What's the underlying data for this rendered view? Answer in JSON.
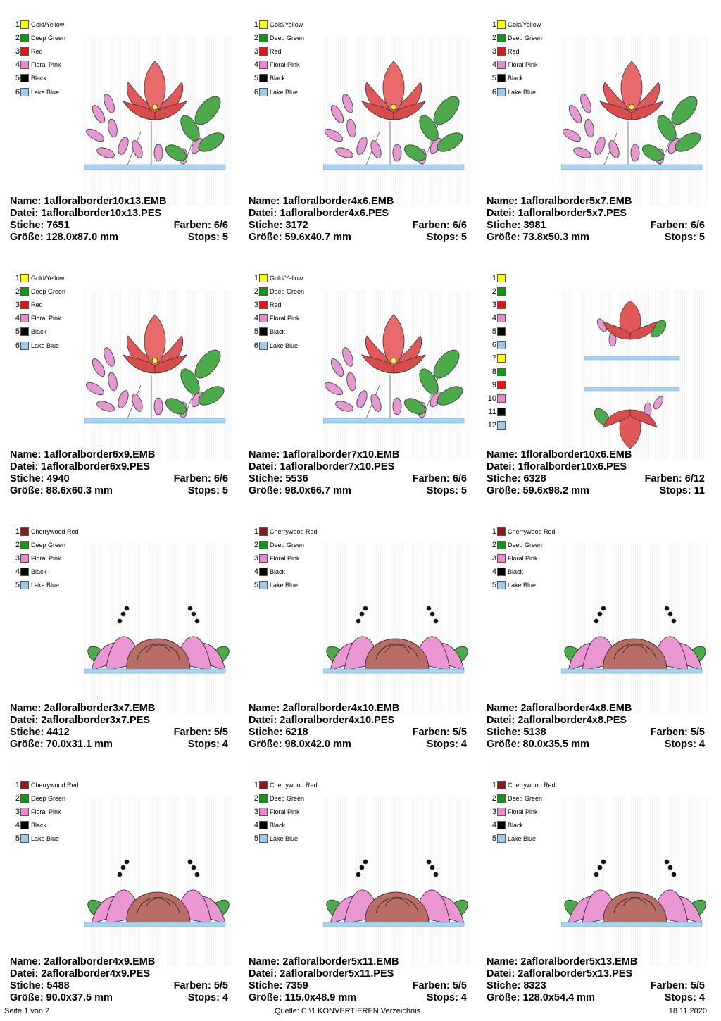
{
  "designs": [
    {
      "name_label": "Name: 1afloralborder10x13.EMB",
      "file_label": "Datei: 1afloralborder10x13.PES",
      "stitches_label": "Stiche: 7651",
      "colors_label": "Farben: 6/6",
      "size_label": "Größe: 128.0x87.0 mm",
      "stops_label": "Stops: 5",
      "motif": "lily",
      "legend": [
        {
          "num": "1",
          "color": "#ffff00",
          "label": "Gold/Yellow"
        },
        {
          "num": "2",
          "color": "#119911",
          "label": "Deep Green"
        },
        {
          "num": "3",
          "color": "#ee1111",
          "label": "Red"
        },
        {
          "num": "4",
          "color": "#ee88cc",
          "label": "Floral Pink"
        },
        {
          "num": "5",
          "color": "#000000",
          "label": "Black"
        },
        {
          "num": "6",
          "color": "#99ccee",
          "label": "Lake Blue"
        }
      ]
    },
    {
      "name_label": "Name: 1afloralborder4x6.EMB",
      "file_label": "Datei: 1afloralborder4x6.PES",
      "stitches_label": "Stiche: 3172",
      "colors_label": "Farben: 6/6",
      "size_label": "Größe: 59.6x40.7 mm",
      "stops_label": "Stops: 5",
      "motif": "lily",
      "legend": [
        {
          "num": "1",
          "color": "#ffff00",
          "label": "Gold/Yellow"
        },
        {
          "num": "2",
          "color": "#119911",
          "label": "Deep Green"
        },
        {
          "num": "3",
          "color": "#ee1111",
          "label": "Red"
        },
        {
          "num": "4",
          "color": "#ee88cc",
          "label": "Floral Pink"
        },
        {
          "num": "5",
          "color": "#000000",
          "label": "Black"
        },
        {
          "num": "6",
          "color": "#99ccee",
          "label": "Lake Blue"
        }
      ]
    },
    {
      "name_label": "Name: 1afloralborder5x7.EMB",
      "file_label": "Datei: 1afloralborder5x7.PES",
      "stitches_label": "Stiche: 3981",
      "colors_label": "Farben: 6/6",
      "size_label": "Größe: 73.8x50.3 mm",
      "stops_label": "Stops: 5",
      "motif": "lily",
      "legend": [
        {
          "num": "1",
          "color": "#ffff00",
          "label": "Gold/Yellow"
        },
        {
          "num": "2",
          "color": "#119911",
          "label": "Deep Green"
        },
        {
          "num": "3",
          "color": "#ee1111",
          "label": "Red"
        },
        {
          "num": "4",
          "color": "#ee88cc",
          "label": "Floral Pink"
        },
        {
          "num": "5",
          "color": "#000000",
          "label": "Black"
        },
        {
          "num": "6",
          "color": "#99ccee",
          "label": "Lake Blue"
        }
      ]
    },
    {
      "name_label": "Name: 1afloralborder6x9.EMB",
      "file_label": "Datei: 1afloralborder6x9.PES",
      "stitches_label": "Stiche: 4940",
      "colors_label": "Farben: 6/6",
      "size_label": "Größe: 88.6x60.3 mm",
      "stops_label": "Stops: 5",
      "motif": "lily",
      "legend": [
        {
          "num": "1",
          "color": "#ffff00",
          "label": "Gold/Yellow"
        },
        {
          "num": "2",
          "color": "#119911",
          "label": "Deep Green"
        },
        {
          "num": "3",
          "color": "#ee1111",
          "label": "Red"
        },
        {
          "num": "4",
          "color": "#ee88cc",
          "label": "Floral Pink"
        },
        {
          "num": "5",
          "color": "#000000",
          "label": "Black"
        },
        {
          "num": "6",
          "color": "#99ccee",
          "label": "Lake Blue"
        }
      ]
    },
    {
      "name_label": "Name: 1afloralborder7x10.EMB",
      "file_label": "Datei: 1afloralborder7x10.PES",
      "stitches_label": "Stiche: 5536",
      "colors_label": "Farben: 6/6",
      "size_label": "Größe: 98.0x66.7 mm",
      "stops_label": "Stops: 5",
      "motif": "lily",
      "legend": [
        {
          "num": "1",
          "color": "#ffff00",
          "label": "Gold/Yellow"
        },
        {
          "num": "2",
          "color": "#119911",
          "label": "Deep Green"
        },
        {
          "num": "3",
          "color": "#ee1111",
          "label": "Red"
        },
        {
          "num": "4",
          "color": "#ee88cc",
          "label": "Floral Pink"
        },
        {
          "num": "5",
          "color": "#000000",
          "label": "Black"
        },
        {
          "num": "6",
          "color": "#99ccee",
          "label": "Lake Blue"
        }
      ]
    },
    {
      "name_label": "Name: 1floralborder10x6.EMB",
      "file_label": "Datei: 1floralborder10x6.PES",
      "stitches_label": "Stiche: 6328",
      "colors_label": "Farben: 6/12",
      "size_label": "Größe: 59.6x98.2 mm",
      "stops_label": "Stops: 11",
      "motif": "split",
      "legend": [
        {
          "num": "1",
          "color": "#ffff00",
          "label": ""
        },
        {
          "num": "2",
          "color": "#119911",
          "label": ""
        },
        {
          "num": "3",
          "color": "#ee1111",
          "label": ""
        },
        {
          "num": "4",
          "color": "#ee88cc",
          "label": ""
        },
        {
          "num": "5",
          "color": "#000000",
          "label": ""
        },
        {
          "num": "6",
          "color": "#99ccee",
          "label": ""
        },
        {
          "num": "7",
          "color": "#ffff00",
          "label": ""
        },
        {
          "num": "8",
          "color": "#119911",
          "label": ""
        },
        {
          "num": "9",
          "color": "#ee1111",
          "label": ""
        },
        {
          "num": "10",
          "color": "#ee88cc",
          "label": ""
        },
        {
          "num": "11",
          "color": "#000000",
          "label": ""
        },
        {
          "num": "12",
          "color": "#99ccee",
          "label": ""
        }
      ]
    },
    {
      "name_label": "Name: 2afloralborder3x7.EMB",
      "file_label": "Datei: 2afloralborder3x7.PES",
      "stitches_label": "Stiche: 4412",
      "colors_label": "Farben: 5/5",
      "size_label": "Größe: 70.0x31.1 mm",
      "stops_label": "Stops: 4",
      "motif": "rose",
      "legend": [
        {
          "num": "1",
          "color": "#8b1a1a",
          "label": "Cherrywood Red"
        },
        {
          "num": "2",
          "color": "#119911",
          "label": "Deep Green"
        },
        {
          "num": "3",
          "color": "#ee88cc",
          "label": "Floral Pink"
        },
        {
          "num": "4",
          "color": "#000000",
          "label": "Black"
        },
        {
          "num": "5",
          "color": "#99ccee",
          "label": "Lake Blue"
        }
      ]
    },
    {
      "name_label": "Name: 2afloralborder4x10.EMB",
      "file_label": "Datei: 2afloralborder4x10.PES",
      "stitches_label": "Stiche: 6218",
      "colors_label": "Farben: 5/5",
      "size_label": "Größe: 98.0x42.0 mm",
      "stops_label": "Stops: 4",
      "motif": "rose",
      "legend": [
        {
          "num": "1",
          "color": "#8b1a1a",
          "label": "Cherrywood Red"
        },
        {
          "num": "2",
          "color": "#119911",
          "label": "Deep Green"
        },
        {
          "num": "3",
          "color": "#ee88cc",
          "label": "Floral Pink"
        },
        {
          "num": "4",
          "color": "#000000",
          "label": "Black"
        },
        {
          "num": "5",
          "color": "#99ccee",
          "label": "Lake Blue"
        }
      ]
    },
    {
      "name_label": "Name: 2afloralborder4x8.EMB",
      "file_label": "Datei: 2afloralborder4x8.PES",
      "stitches_label": "Stiche: 5138",
      "colors_label": "Farben: 5/5",
      "size_label": "Größe: 80.0x35.5 mm",
      "stops_label": "Stops: 4",
      "motif": "rose",
      "legend": [
        {
          "num": "1",
          "color": "#8b1a1a",
          "label": "Cherrywood Red"
        },
        {
          "num": "2",
          "color": "#119911",
          "label": "Deep Green"
        },
        {
          "num": "3",
          "color": "#ee88cc",
          "label": "Floral Pink"
        },
        {
          "num": "4",
          "color": "#000000",
          "label": "Black"
        },
        {
          "num": "5",
          "color": "#99ccee",
          "label": "Lake Blue"
        }
      ]
    },
    {
      "name_label": "Name: 2afloralborder4x9.EMB",
      "file_label": "Datei: 2afloralborder4x9.PES",
      "stitches_label": "Stiche: 5488",
      "colors_label": "Farben: 5/5",
      "size_label": "Größe: 90.0x37.5 mm",
      "stops_label": "Stops: 4",
      "motif": "rose",
      "legend": [
        {
          "num": "1",
          "color": "#8b1a1a",
          "label": "Cherrywood Red"
        },
        {
          "num": "2",
          "color": "#119911",
          "label": "Deep Green"
        },
        {
          "num": "3",
          "color": "#ee88cc",
          "label": "Floral Pink"
        },
        {
          "num": "4",
          "color": "#000000",
          "label": "Black"
        },
        {
          "num": "5",
          "color": "#99ccee",
          "label": "Lake Blue"
        }
      ]
    },
    {
      "name_label": "Name: 2afloralborder5x11.EMB",
      "file_label": "Datei: 2afloralborder5x11.PES",
      "stitches_label": "Stiche: 7359",
      "colors_label": "Farben: 5/5",
      "size_label": "Größe: 115.0x48.9 mm",
      "stops_label": "Stops: 4",
      "motif": "rose",
      "legend": [
        {
          "num": "1",
          "color": "#8b1a1a",
          "label": "Cherrywood Red"
        },
        {
          "num": "2",
          "color": "#119911",
          "label": "Deep Green"
        },
        {
          "num": "3",
          "color": "#ee88cc",
          "label": "Floral Pink"
        },
        {
          "num": "4",
          "color": "#000000",
          "label": "Black"
        },
        {
          "num": "5",
          "color": "#99ccee",
          "label": "Lake Blue"
        }
      ]
    },
    {
      "name_label": "Name: 2afloralborder5x13.EMB",
      "file_label": "Datei: 2afloralborder5x13.PES",
      "stitches_label": "Stiche: 8323",
      "colors_label": "Farben: 5/5",
      "size_label": "Größe: 128.0x54.4 mm",
      "stops_label": "Stops: 4",
      "motif": "rose",
      "legend": [
        {
          "num": "1",
          "color": "#8b1a1a",
          "label": "Cherrywood Red"
        },
        {
          "num": "2",
          "color": "#119911",
          "label": "Deep Green"
        },
        {
          "num": "3",
          "color": "#ee88cc",
          "label": "Floral Pink"
        },
        {
          "num": "4",
          "color": "#000000",
          "label": "Black"
        },
        {
          "num": "5",
          "color": "#99ccee",
          "label": "Lake Blue"
        }
      ]
    }
  ],
  "footer": {
    "page": "Seite 1 von 2",
    "source": "Quelle: C:\\1 KONVERTIEREN Verzeichnis",
    "date": "18.11.2020"
  }
}
